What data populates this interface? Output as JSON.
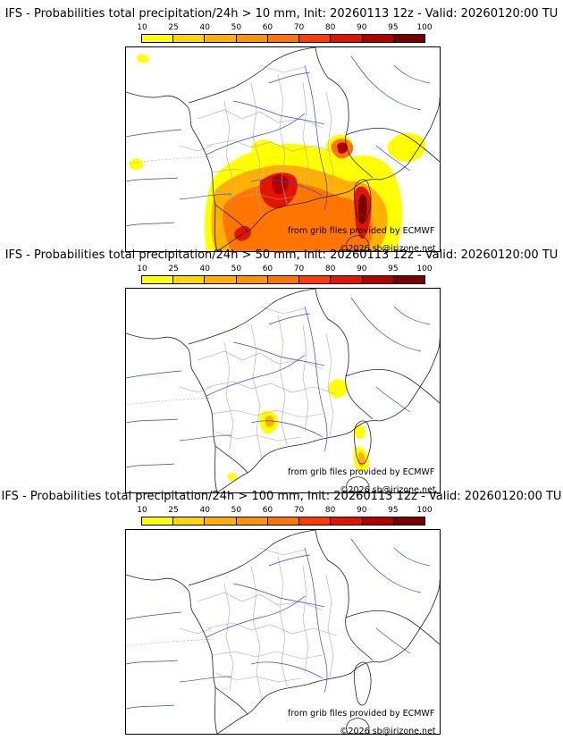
{
  "colorbar": {
    "ticks": [
      "10",
      "25",
      "40",
      "50",
      "60",
      "70",
      "80",
      "90",
      "95",
      "100"
    ],
    "colors": [
      "#ffff00",
      "#ffd700",
      "#ffb000",
      "#ff9400",
      "#ff7500",
      "#ff3a00",
      "#e01400",
      "#b00000",
      "#7a0000"
    ]
  },
  "panels": [
    {
      "title": "IFS - Probabilities total precipitation/24h > 10 mm, Init: 20260113 12z - Valid: 20260120:00 TU",
      "credit_source": "from grib files provided by ECMWF",
      "credit_copyright": "©2026 sb@irizone.net"
    },
    {
      "title": "IFS - Probabilities total precipitation/24h > 50 mm, Init: 20260113 12z - Valid: 20260120:00 TU",
      "credit_source": "from grib files provided by ECMWF",
      "credit_copyright": "©2026 sb@irizone.net"
    },
    {
      "title": "IFS - Probabilities total precipitation/24h > 100 mm, Init: 20260113 12z - Valid: 20260120:00 TU",
      "credit_source": "from grib files provided by ECMWF",
      "credit_copyright": "©2026 sb@irizone.net"
    }
  ]
}
